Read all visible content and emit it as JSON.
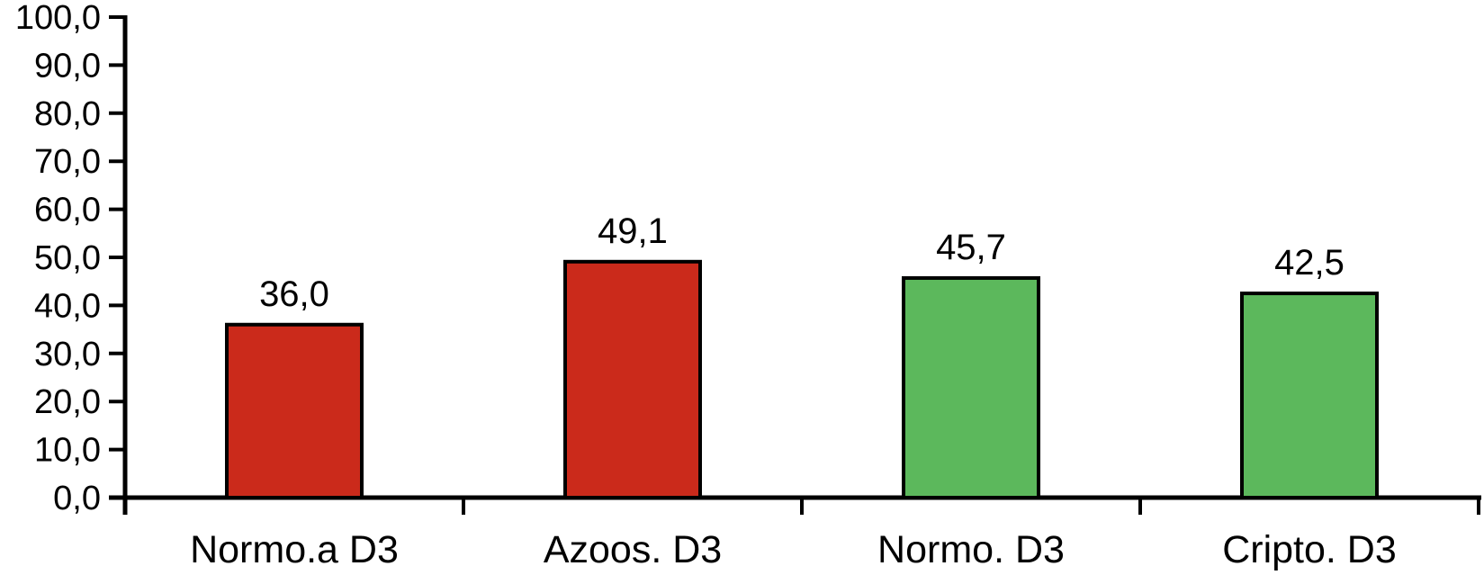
{
  "chart_data": {
    "type": "bar",
    "title": "",
    "xlabel": "",
    "ylabel": "",
    "categories": [
      "Normo.a D3",
      "Azoos. D3",
      "Normo. D3",
      "Cripto. D3"
    ],
    "values": [
      36.0,
      49.1,
      45.7,
      42.5
    ],
    "value_labels": [
      "36,0",
      "49,1",
      "45,7",
      "42,5"
    ],
    "ylim": [
      0,
      100
    ],
    "ytick_step": 10,
    "ytick_labels": [
      "0,0",
      "10,0",
      "20,0",
      "30,0",
      "40,0",
      "50,0",
      "60,0",
      "70,0",
      "80,0",
      "90,0",
      "100,0"
    ],
    "decimal_separator": ",",
    "grid": false,
    "legend": "none",
    "bar_colors": [
      "#cb2a1b",
      "#cb2a1b",
      "#5cb85c",
      "#5cb85c"
    ],
    "bar_border_color": "#000000",
    "axis_color": "#000000",
    "background_color": "#ffffff"
  }
}
